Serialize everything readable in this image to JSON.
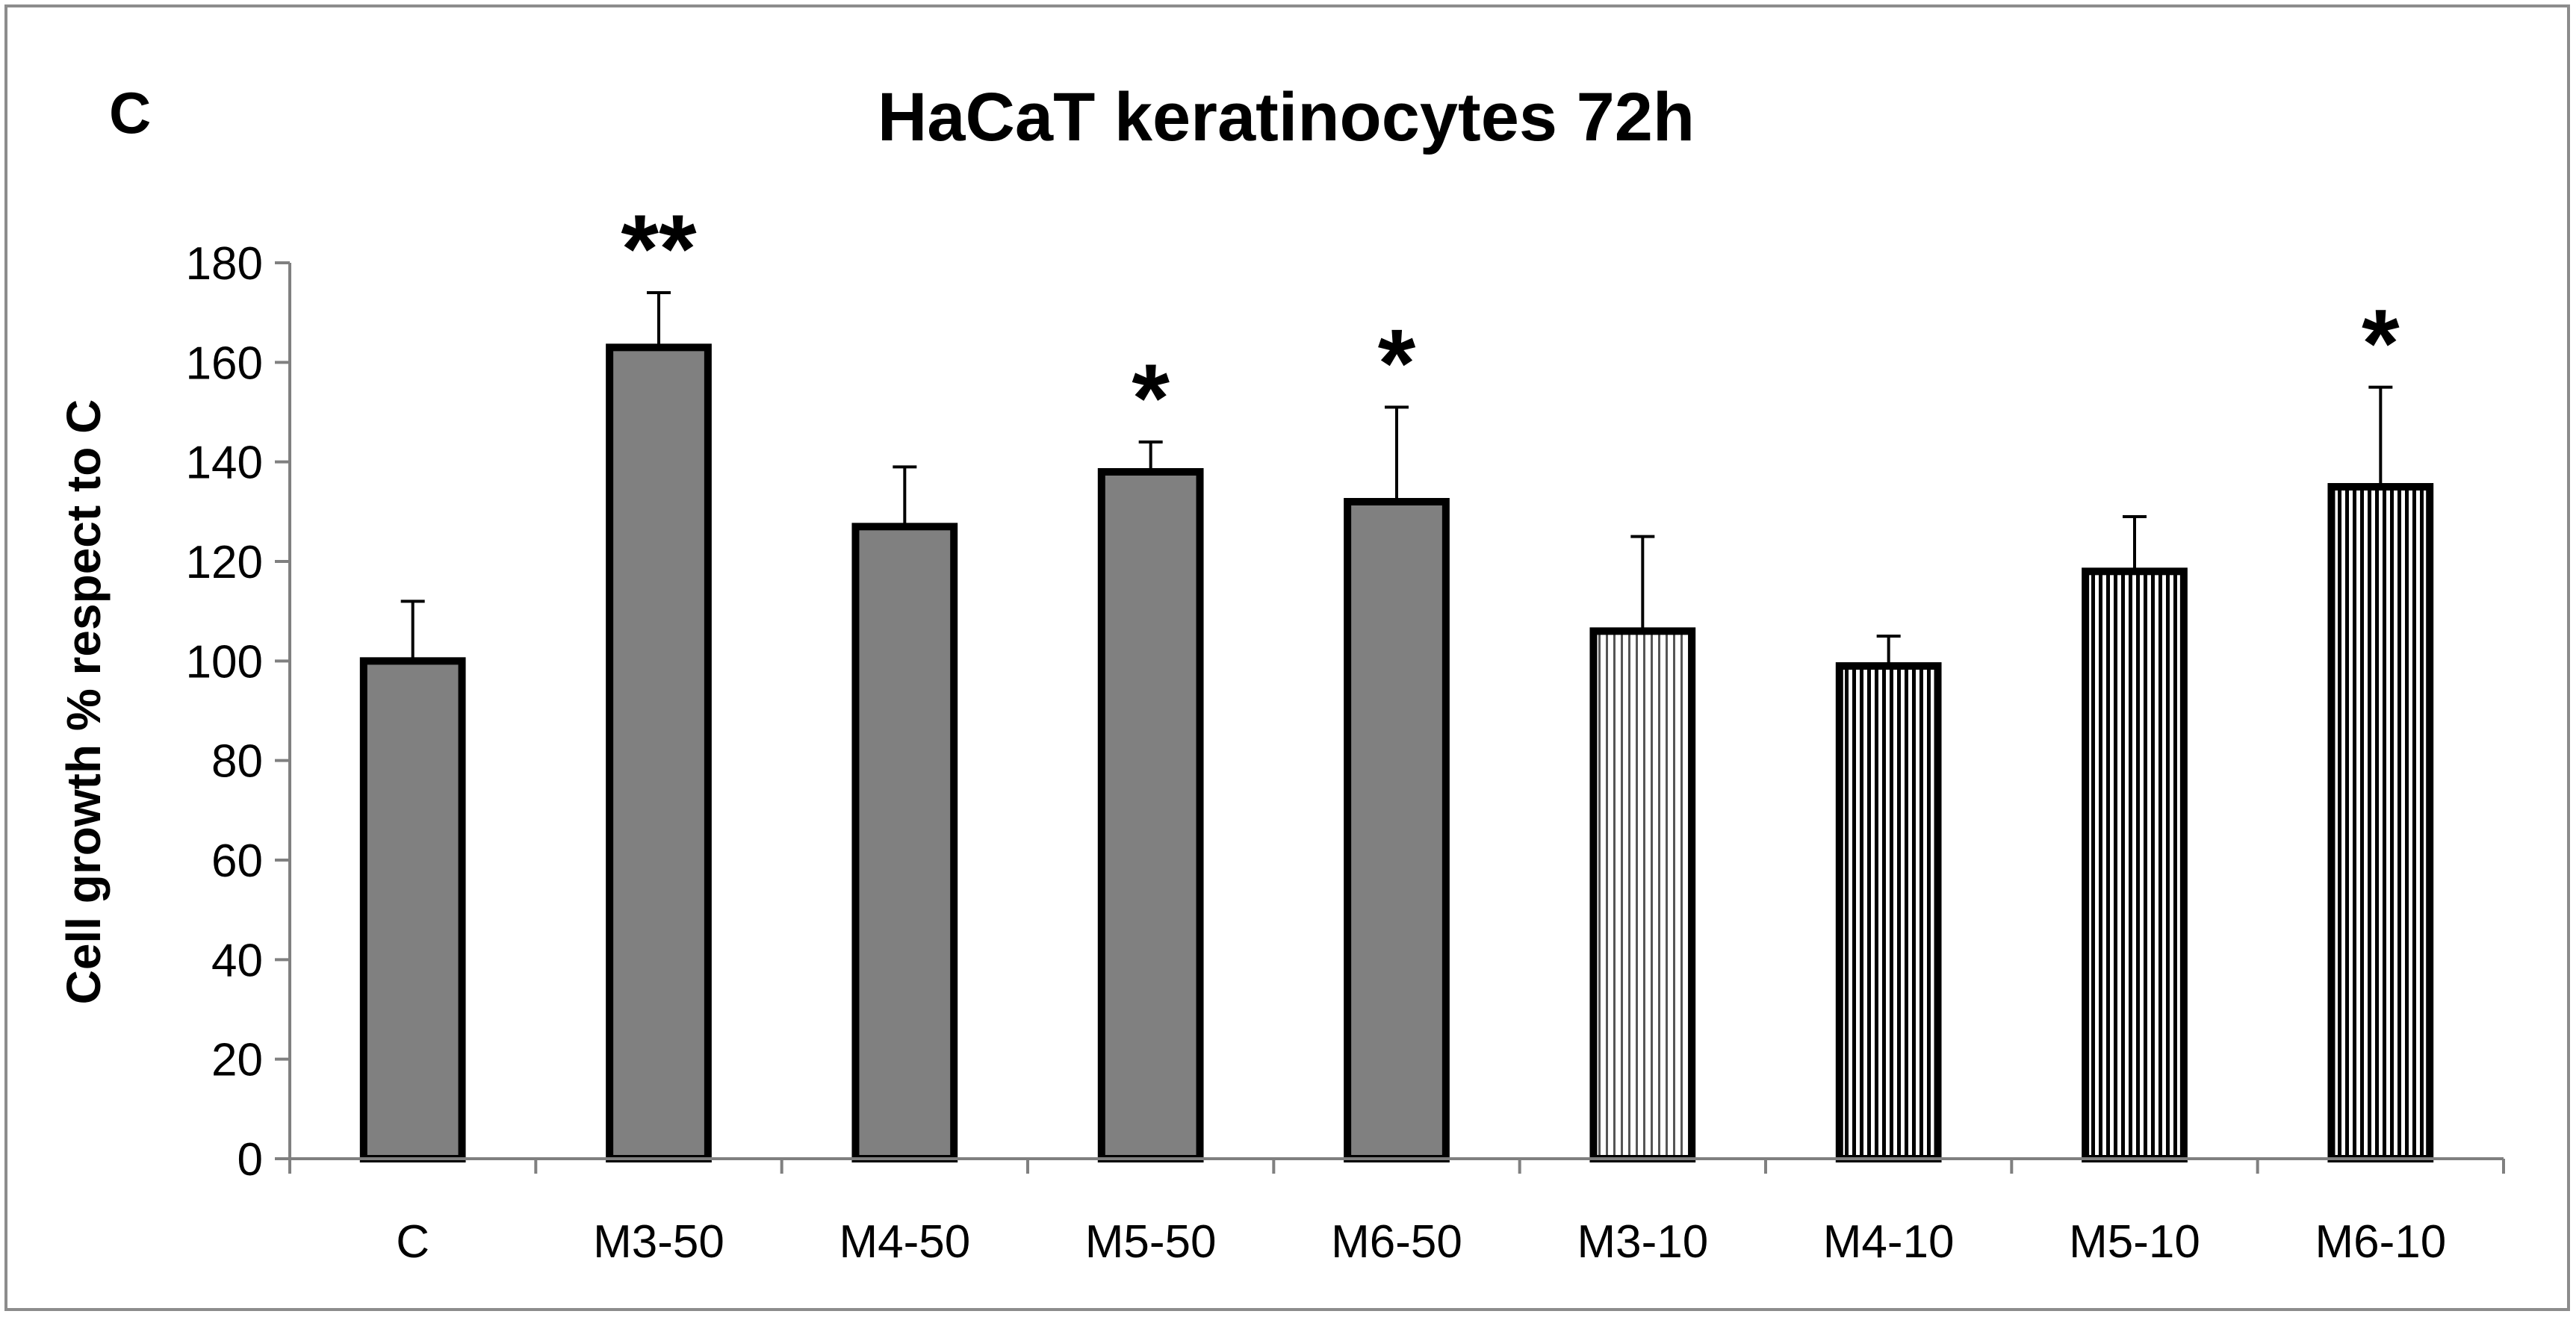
{
  "panel_letter": "C",
  "chart_data": {
    "type": "bar",
    "title": "HaCaT keratinocytes 72h",
    "xlabel": "",
    "ylabel": "Cell growth % respect to C",
    "ylim": [
      0,
      180
    ],
    "yticks": [
      0,
      20,
      40,
      60,
      80,
      100,
      120,
      140,
      160,
      180
    ],
    "grid": false,
    "legend": "none",
    "categories": [
      "C",
      "M3-50",
      "M4-50",
      "M5-50",
      "M6-50",
      "M3-10",
      "M4-10",
      "M5-10",
      "M6-10"
    ],
    "values": [
      100,
      163,
      127,
      138,
      132,
      106,
      99,
      118,
      135
    ],
    "errors": [
      12,
      11,
      12,
      6,
      19,
      19,
      6,
      11,
      20
    ],
    "significance": [
      "",
      "**",
      "",
      "*",
      "*",
      "",
      "",
      "",
      "*"
    ],
    "fill_styles": [
      "solid",
      "solid",
      "solid",
      "solid",
      "solid",
      "stripes-light",
      "stripes-medium",
      "stripes-dense",
      "stripes-dense"
    ],
    "colors": {
      "solid_fill": "#808080",
      "stripe_color": "#000000",
      "bar_outline": "#000000",
      "axis": "#808080",
      "frame": "#8c8c8c"
    }
  }
}
